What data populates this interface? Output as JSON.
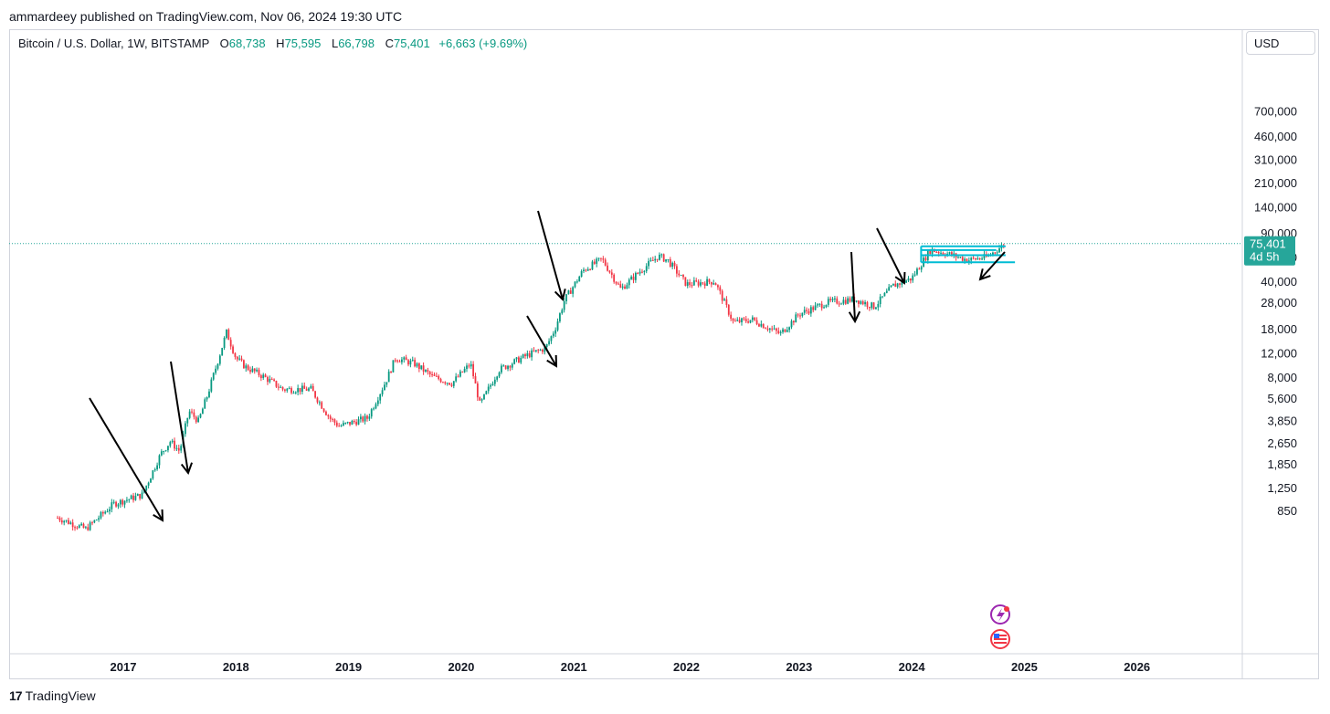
{
  "publisher_line": "ammardeey published on TradingView.com, Nov 06, 2024 19:30 UTC",
  "legend": {
    "symbol": "Bitcoin / U.S. Dollar, 1W, BITSTAMP",
    "o_label": "O",
    "o": "68,738",
    "h_label": "H",
    "h": "75,595",
    "l_label": "L",
    "l": "66,798",
    "c_label": "C",
    "c": "75,401",
    "change": "+6,663 (+9.69%)"
  },
  "currency_button": "USD",
  "price_tag": {
    "price": "75,401",
    "countdown": "4d 5h"
  },
  "footer_logo": "TradingView",
  "colors": {
    "up": "#089981",
    "down": "#f23645",
    "line": "#00bcd4",
    "accent": "#26a69a"
  },
  "chart_data": {
    "type": "candlestick",
    "y_scale": "log",
    "ylim": [
      700,
      800000
    ],
    "y_ticks": [
      "700,000",
      "460,000",
      "310,000",
      "210,000",
      "140,000",
      "90,000",
      "60,000",
      "40,000",
      "28,000",
      "18,000",
      "12,000",
      "8,000",
      "5,600",
      "3,850",
      "2,650",
      "1,850",
      "1,250",
      "850"
    ],
    "x_ticks": [
      "2017",
      "2018",
      "2019",
      "2020",
      "2021",
      "2022",
      "2023",
      "2024",
      "2025",
      "2026"
    ],
    "last_price": 75401,
    "price_path": [
      [
        "2016-06",
        750
      ],
      [
        "2016-09",
        620
      ],
      [
        "2016-12",
        950
      ],
      [
        "2017-03",
        1100
      ],
      [
        "2017-05",
        2200
      ],
      [
        "2017-06",
        2700
      ],
      [
        "2017-07",
        2300
      ],
      [
        "2017-08",
        4500
      ],
      [
        "2017-09",
        3800
      ],
      [
        "2017-10",
        6000
      ],
      [
        "2017-12",
        17000
      ],
      [
        "2018-01",
        11000
      ],
      [
        "2018-02",
        9500
      ],
      [
        "2018-04",
        8000
      ],
      [
        "2018-06",
        6500
      ],
      [
        "2018-09",
        6500
      ],
      [
        "2018-11",
        4000
      ],
      [
        "2018-12",
        3500
      ],
      [
        "2019-03",
        4000
      ],
      [
        "2019-05",
        7500
      ],
      [
        "2019-06",
        11000
      ],
      [
        "2019-08",
        10000
      ],
      [
        "2019-10",
        8000
      ],
      [
        "2019-12",
        7200
      ],
      [
        "2020-02",
        10000
      ],
      [
        "2020-03",
        5000
      ],
      [
        "2020-05",
        9000
      ],
      [
        "2020-08",
        11500
      ],
      [
        "2020-10",
        13000
      ],
      [
        "2020-11",
        18000
      ],
      [
        "2020-12",
        29000
      ],
      [
        "2021-02",
        48000
      ],
      [
        "2021-04",
        58000
      ],
      [
        "2021-06",
        35000
      ],
      [
        "2021-08",
        47000
      ],
      [
        "2021-10",
        61000
      ],
      [
        "2021-11",
        57000
      ],
      [
        "2022-01",
        38000
      ],
      [
        "2022-04",
        40000
      ],
      [
        "2022-06",
        20000
      ],
      [
        "2022-08",
        21000
      ],
      [
        "2022-11",
        16500
      ],
      [
        "2023-01",
        23000
      ],
      [
        "2023-04",
        28000
      ],
      [
        "2023-07",
        29500
      ],
      [
        "2023-09",
        26000
      ],
      [
        "2023-11",
        37000
      ],
      [
        "2024-01",
        42000
      ],
      [
        "2024-03",
        68000
      ],
      [
        "2024-05",
        63000
      ],
      [
        "2024-07",
        57000
      ],
      [
        "2024-09",
        60000
      ],
      [
        "2024-11",
        75401
      ]
    ],
    "range_lines": [
      {
        "from": "2024-02",
        "to": "2024-11",
        "price": 72000
      },
      {
        "from": "2024-02",
        "to": "2024-10",
        "price": 67500
      },
      {
        "from": "2024-02",
        "to": "2024-11",
        "price": 62000
      },
      {
        "from": "2024-02",
        "to": "2024-12",
        "price": 55000
      }
    ]
  }
}
